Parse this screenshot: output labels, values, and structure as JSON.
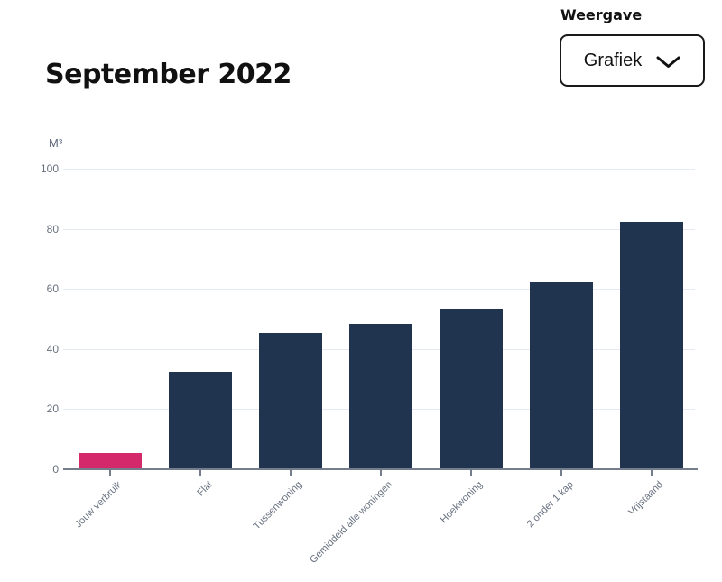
{
  "header": {
    "title": "September 2022",
    "view_label": "Weergave",
    "view_value": "Grafiek",
    "view_icon": "chevron-down-icon"
  },
  "chart_data": {
    "type": "bar",
    "title": "September 2022",
    "ylabel": "M³",
    "xlabel": "",
    "categories": [
      "Jouw verbruik",
      "Flat",
      "Tussenwoning",
      "Gemiddeld alle woningen",
      "Hoekwoning",
      "2 onder 1 kap",
      "Vrijstaand"
    ],
    "values": [
      5,
      32,
      45,
      48,
      53,
      62,
      82
    ],
    "highlight_category": "Jouw verbruik",
    "ylim": [
      0,
      100
    ],
    "yticks": [
      0,
      20,
      40,
      60,
      80,
      100
    ],
    "grid": true,
    "legend": "none",
    "xlabel_rotation": -45
  },
  "colors": {
    "bar_default": "#203450",
    "bar_highlight": "#d42a6b",
    "grid_line": "#e6ebf3",
    "axis_line": "#737d8c",
    "tick_text": "#67707f",
    "heading_text": "#111111"
  }
}
